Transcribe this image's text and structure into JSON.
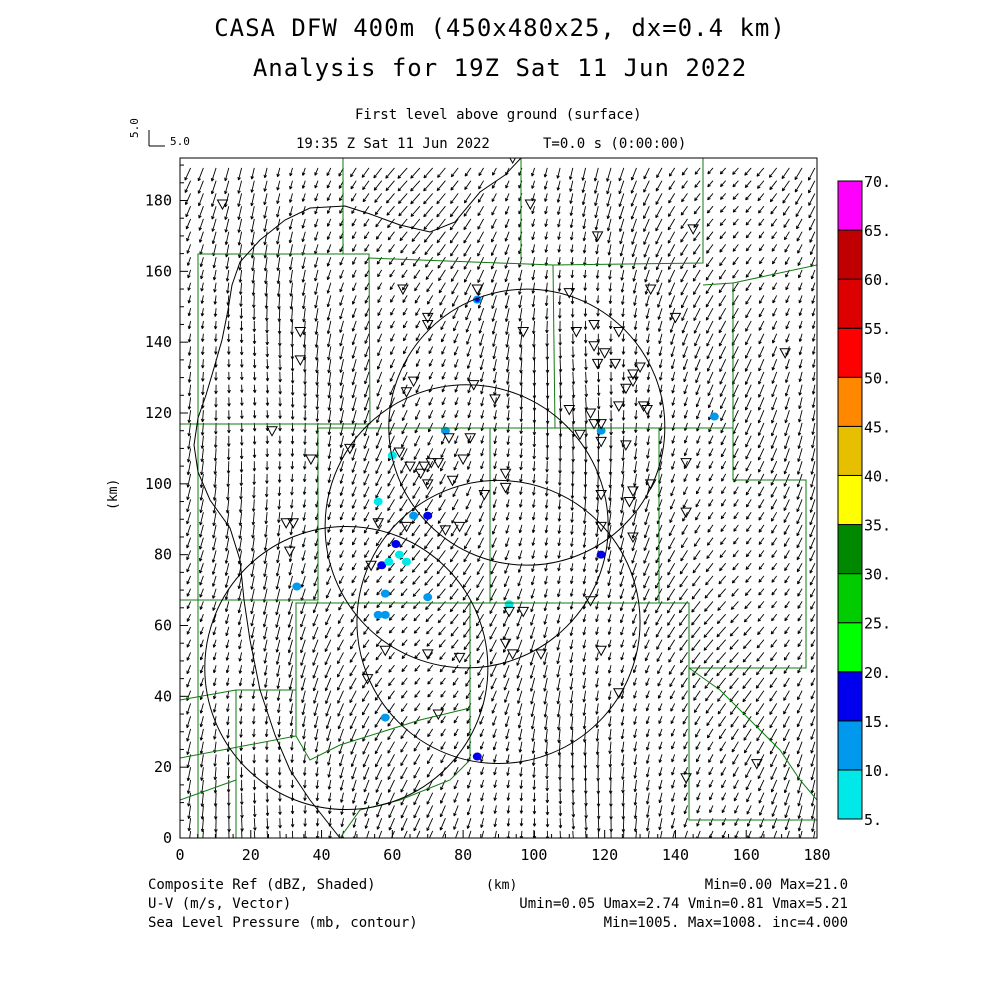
{
  "header": {
    "title_line1": "CASA DFW 400m (450x480x25, dx=0.4 km)",
    "title_line2": "Analysis for 19Z Sat 11 Jun 2022",
    "level": "First level above ground (surface)",
    "time": "19:35 Z Sat 11 Jun 2022",
    "step": "T=0.0 s (0:00:00)",
    "vector_scale_label": "5.0",
    "vector_scale_side": "5.0"
  },
  "axes": {
    "x_ticks": [
      "0",
      "20",
      "40",
      "60",
      "80",
      "100",
      "120",
      "140",
      "160",
      "180"
    ],
    "y_ticks": [
      "0",
      "20",
      "40",
      "60",
      "80",
      "100",
      "120",
      "140",
      "160",
      "180"
    ],
    "x_label": "(km)",
    "y_label": "(km)",
    "xlim": [
      0,
      180
    ],
    "ylim": [
      0,
      192
    ]
  },
  "colorbar": {
    "labels": [
      "5.",
      "10.",
      "15.",
      "20.",
      "25.",
      "30.",
      "35.",
      "40.",
      "45.",
      "50.",
      "55.",
      "60.",
      "65.",
      "70."
    ],
    "colors": [
      "#00e8e8",
      "#0099ee",
      "#0000ee",
      "#00ff00",
      "#00cc00",
      "#008800",
      "#ffff00",
      "#e6bf00",
      "#ff8800",
      "#ff0000",
      "#dd0000",
      "#c00000",
      "#ff00ff"
    ]
  },
  "footer": {
    "left1": "Composite Ref (dBZ, Shaded)",
    "left2": "U-V (m/s, Vector)",
    "left3": "Sea Level Pressure (mb, contour)",
    "center": "(km)",
    "right1": "Min=0.00 Max=21.0",
    "right2": "Umin=0.05 Umax=2.74 Vmin=0.81 Vmax=5.21",
    "right3": "Min=1005. Max=1008. inc=4.000"
  },
  "map": {
    "radar_rings": [
      {
        "cx": 98,
        "cy": 116,
        "r": 39
      },
      {
        "cx": 81,
        "cy": 88,
        "r": 40
      },
      {
        "cx": 90,
        "cy": 61,
        "r": 40
      },
      {
        "cx": 47,
        "cy": 48,
        "r": 40
      }
    ],
    "stations": [
      [
        12,
        179
      ],
      [
        94,
        192
      ],
      [
        99,
        179
      ],
      [
        118,
        170
      ],
      [
        145,
        172
      ],
      [
        63,
        155
      ],
      [
        84,
        155
      ],
      [
        110,
        154
      ],
      [
        133,
        155
      ],
      [
        34,
        143
      ],
      [
        34,
        135
      ],
      [
        70,
        147
      ],
      [
        70,
        145
      ],
      [
        97,
        143
      ],
      [
        112,
        143
      ],
      [
        117,
        145
      ],
      [
        124,
        143
      ],
      [
        140,
        147
      ],
      [
        117,
        139
      ],
      [
        120,
        137
      ],
      [
        118,
        134
      ],
      [
        123,
        134
      ],
      [
        130,
        133
      ],
      [
        128,
        131
      ],
      [
        126,
        127
      ],
      [
        128,
        129
      ],
      [
        66,
        129
      ],
      [
        64,
        126
      ],
      [
        83,
        128
      ],
      [
        89,
        124
      ],
      [
        131,
        122
      ],
      [
        132,
        121
      ],
      [
        110,
        121
      ],
      [
        116,
        120
      ],
      [
        117,
        117
      ],
      [
        119,
        117
      ],
      [
        124,
        122
      ],
      [
        113,
        114
      ],
      [
        119,
        112
      ],
      [
        126,
        111
      ],
      [
        26,
        115
      ],
      [
        48,
        110
      ],
      [
        76,
        113
      ],
      [
        82,
        113
      ],
      [
        62,
        109
      ],
      [
        80,
        107
      ],
      [
        37,
        107
      ],
      [
        65,
        105
      ],
      [
        69,
        105
      ],
      [
        71,
        106
      ],
      [
        73,
        106
      ],
      [
        68,
        103
      ],
      [
        70,
        100
      ],
      [
        77,
        101
      ],
      [
        92,
        103
      ],
      [
        92,
        99
      ],
      [
        86,
        97
      ],
      [
        128,
        98
      ],
      [
        133,
        100
      ],
      [
        143,
        106
      ],
      [
        127,
        95
      ],
      [
        119,
        97
      ],
      [
        79,
        88
      ],
      [
        75,
        87
      ],
      [
        143,
        92
      ],
      [
        128,
        85
      ],
      [
        64,
        88
      ],
      [
        30,
        89
      ],
      [
        32,
        89
      ],
      [
        56,
        89
      ],
      [
        119,
        88
      ],
      [
        54,
        77
      ],
      [
        31,
        81
      ],
      [
        93,
        64
      ],
      [
        97,
        64
      ],
      [
        116,
        67
      ],
      [
        92,
        55
      ],
      [
        94,
        52
      ],
      [
        102,
        52
      ],
      [
        119,
        53
      ],
      [
        70,
        52
      ],
      [
        79,
        51
      ],
      [
        58,
        53
      ],
      [
        53,
        45
      ],
      [
        124,
        41
      ],
      [
        73,
        35
      ],
      [
        143,
        17
      ],
      [
        163,
        21
      ],
      [
        171,
        137
      ]
    ],
    "echoes": [
      {
        "x": 84,
        "y": 152,
        "v": 14
      },
      {
        "x": 75,
        "y": 115,
        "v": 10
      },
      {
        "x": 119,
        "y": 115,
        "v": 12
      },
      {
        "x": 151,
        "y": 119,
        "v": 10
      },
      {
        "x": 66,
        "y": 91,
        "v": 12
      },
      {
        "x": 70,
        "y": 91,
        "v": 16
      },
      {
        "x": 61,
        "y": 83,
        "v": 16
      },
      {
        "x": 57,
        "y": 77,
        "v": 16
      },
      {
        "x": 119,
        "y": 80,
        "v": 16
      },
      {
        "x": 59,
        "y": 78,
        "v": 8
      },
      {
        "x": 64,
        "y": 78,
        "v": 8
      },
      {
        "x": 62,
        "y": 80,
        "v": 9
      },
      {
        "x": 33,
        "y": 71,
        "v": 10
      },
      {
        "x": 58,
        "y": 69,
        "v": 11
      },
      {
        "x": 70,
        "y": 68,
        "v": 10
      },
      {
        "x": 56,
        "y": 63,
        "v": 11
      },
      {
        "x": 58,
        "y": 63,
        "v": 10
      },
      {
        "x": 93,
        "y": 66,
        "v": 9
      },
      {
        "x": 58,
        "y": 34,
        "v": 12
      },
      {
        "x": 84,
        "y": 23,
        "v": 17
      },
      {
        "x": 56,
        "y": 95,
        "v": 7
      },
      {
        "x": 60,
        "y": 108,
        "v": 7
      }
    ]
  }
}
